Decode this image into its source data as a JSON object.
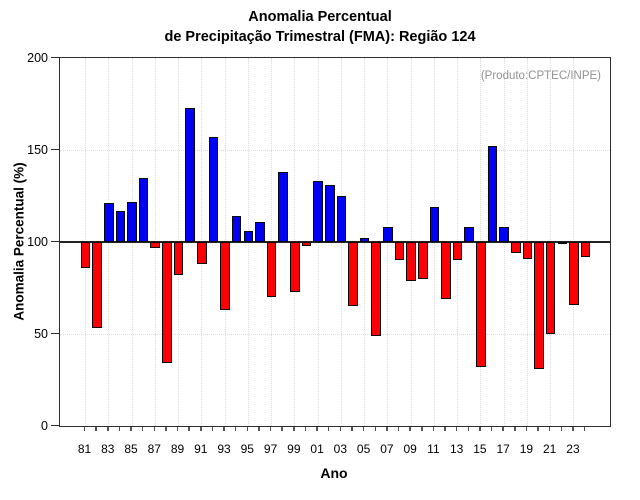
{
  "title": {
    "line1": "Anomalia Percentual",
    "line2": "de Precipitação Trimestral (FMA): Região 124"
  },
  "annotation": "(Produto:CPTEC/INPE)",
  "chart_data": {
    "type": "bar",
    "title": "Anomalia Percentual de Precipitação Trimestral (FMA): Região 124",
    "xlabel": "Ano",
    "ylabel": "Anomalia Percentual (%)",
    "ylim": [
      0,
      200
    ],
    "yticks": [
      0,
      50,
      100,
      150,
      200
    ],
    "ytick_labels": [
      "0",
      "50",
      "100",
      "150",
      "200"
    ],
    "baseline": 100,
    "grid": "dotted, horizontal at 50/100/150, vertical at labeled years",
    "legend": "none",
    "colors": {
      "above_baseline": "#0000f2",
      "below_baseline": "#fb0006"
    },
    "x_tick_labels": [
      "81",
      "83",
      "85",
      "87",
      "89",
      "91",
      "93",
      "95",
      "97",
      "99",
      "01",
      "03",
      "05",
      "07",
      "09",
      "11",
      "13",
      "15",
      "17",
      "19",
      "21",
      "23"
    ],
    "years": [
      1981,
      1982,
      1983,
      1984,
      1985,
      1986,
      1987,
      1988,
      1989,
      1990,
      1991,
      1992,
      1993,
      1994,
      1995,
      1996,
      1997,
      1998,
      1999,
      2000,
      2001,
      2002,
      2003,
      2004,
      2005,
      2006,
      2007,
      2008,
      2009,
      2010,
      2011,
      2012,
      2013,
      2014,
      2015,
      2016,
      2017,
      2018,
      2019,
      2020,
      2021,
      2022,
      2023,
      2024
    ],
    "values": [
      86,
      53,
      121,
      117,
      122,
      135,
      97,
      34,
      82,
      173,
      88,
      157,
      63,
      114,
      106,
      111,
      70,
      138,
      73,
      98,
      133,
      131,
      125,
      65,
      102,
      49,
      108,
      90,
      79,
      80,
      119,
      69,
      90,
      108,
      32,
      152,
      108,
      94,
      91,
      31,
      50,
      99,
      66,
      92
    ]
  }
}
